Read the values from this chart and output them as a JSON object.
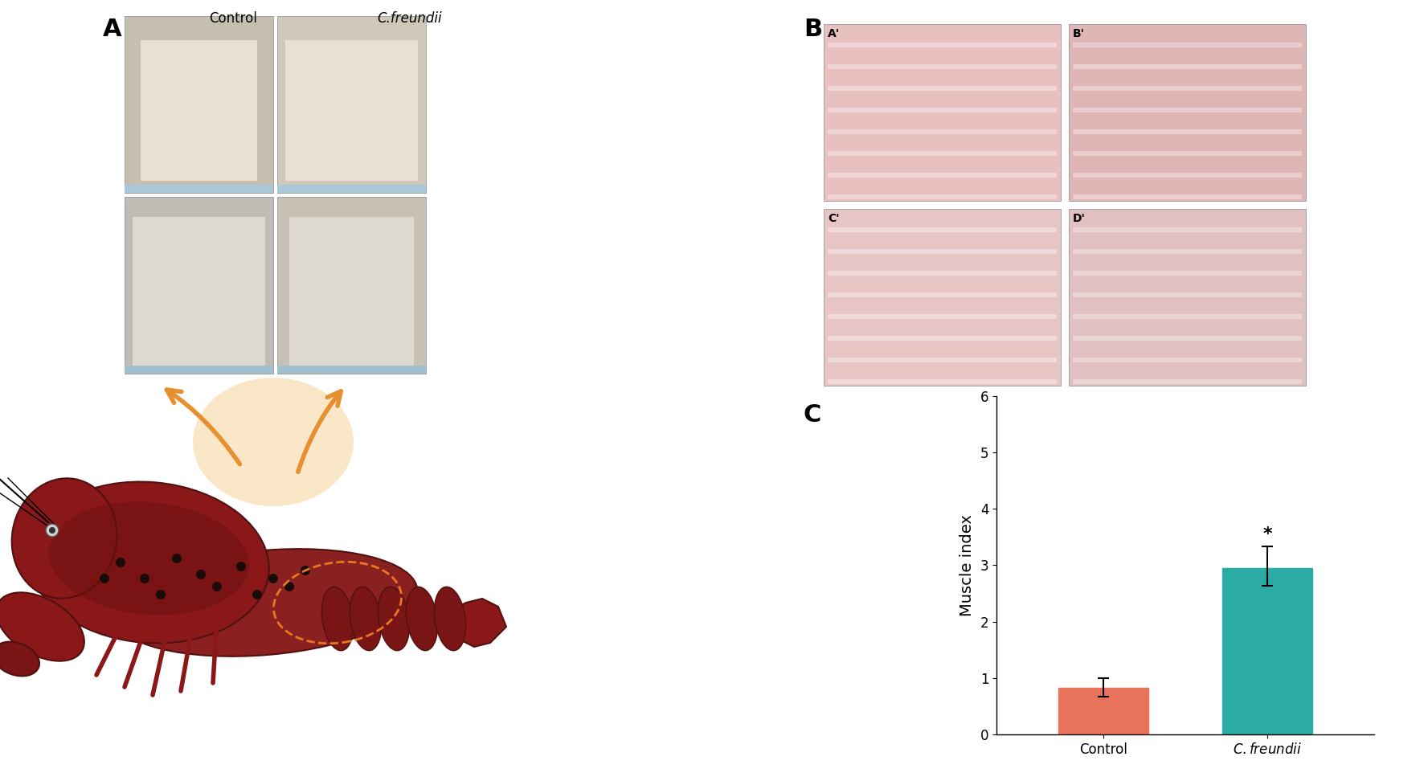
{
  "categories": [
    "Control",
    "C.freundii"
  ],
  "values": [
    0.82,
    2.95
  ],
  "errors_up": [
    0.18,
    0.38
  ],
  "errors_down": [
    0.15,
    0.32
  ],
  "bar_colors": [
    "#E8735A",
    "#2AABA6"
  ],
  "ylabel": "Muscle index",
  "ylim": [
    0,
    6
  ],
  "yticks": [
    0,
    1,
    2,
    3,
    4,
    5,
    6
  ],
  "significance_label": "*",
  "background_color": "#ffffff",
  "bar_width": 0.55,
  "label_A": "A",
  "label_B": "B",
  "label_C": "C",
  "control_col_label": "Control",
  "cfreundii_col_label": "C.freundii",
  "tick_fontsize": 12,
  "ylabel_fontsize": 14,
  "panel_label_fontsize": 22,
  "capsize": 5,
  "elinewidth": 1.5,
  "photo_A_top_left_color": "#c8c0b0",
  "photo_A_top_right_color": "#d8cfc0",
  "photo_A_bot_left_color": "#c0bdb8",
  "photo_A_bot_right_color": "#c8bfb5",
  "histo_A_prime_color": "#e8c0c0",
  "histo_B_prime_color": "#e0b5b5",
  "histo_C_prime_color": "#e8c5c5",
  "histo_D_prime_color": "#e0c0c0",
  "crayfish_body_color": "#8B1818",
  "crayfish_dark_color": "#5A0808",
  "crayfish_mid_color": "#A02020",
  "orange_arrow_color": "#E89030",
  "dashed_ellipse_color": "#E87820"
}
